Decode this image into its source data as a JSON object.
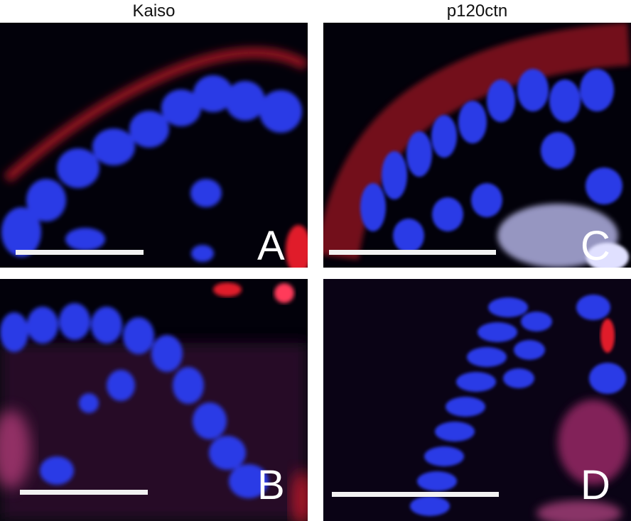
{
  "headers": {
    "left": "Kaiso",
    "right": "p120ctn"
  },
  "panels": [
    {
      "id": "A",
      "letter": "A",
      "stain": "Kaiso"
    },
    {
      "id": "B",
      "letter": "B",
      "stain": "Kaiso"
    },
    {
      "id": "C",
      "letter": "C",
      "stain": "p120ctn"
    },
    {
      "id": "D",
      "letter": "D",
      "stain": "p120ctn"
    }
  ],
  "colors": {
    "background": "#02010a",
    "nuclei": "#2a3ae6",
    "membrane_stain": "#e01a2a",
    "overlay": "#c8c8ff",
    "scale_bar": "#f2f2f2"
  },
  "labels": {
    "panel_a": "A",
    "panel_b": "B",
    "panel_c": "C",
    "panel_d": "D"
  }
}
